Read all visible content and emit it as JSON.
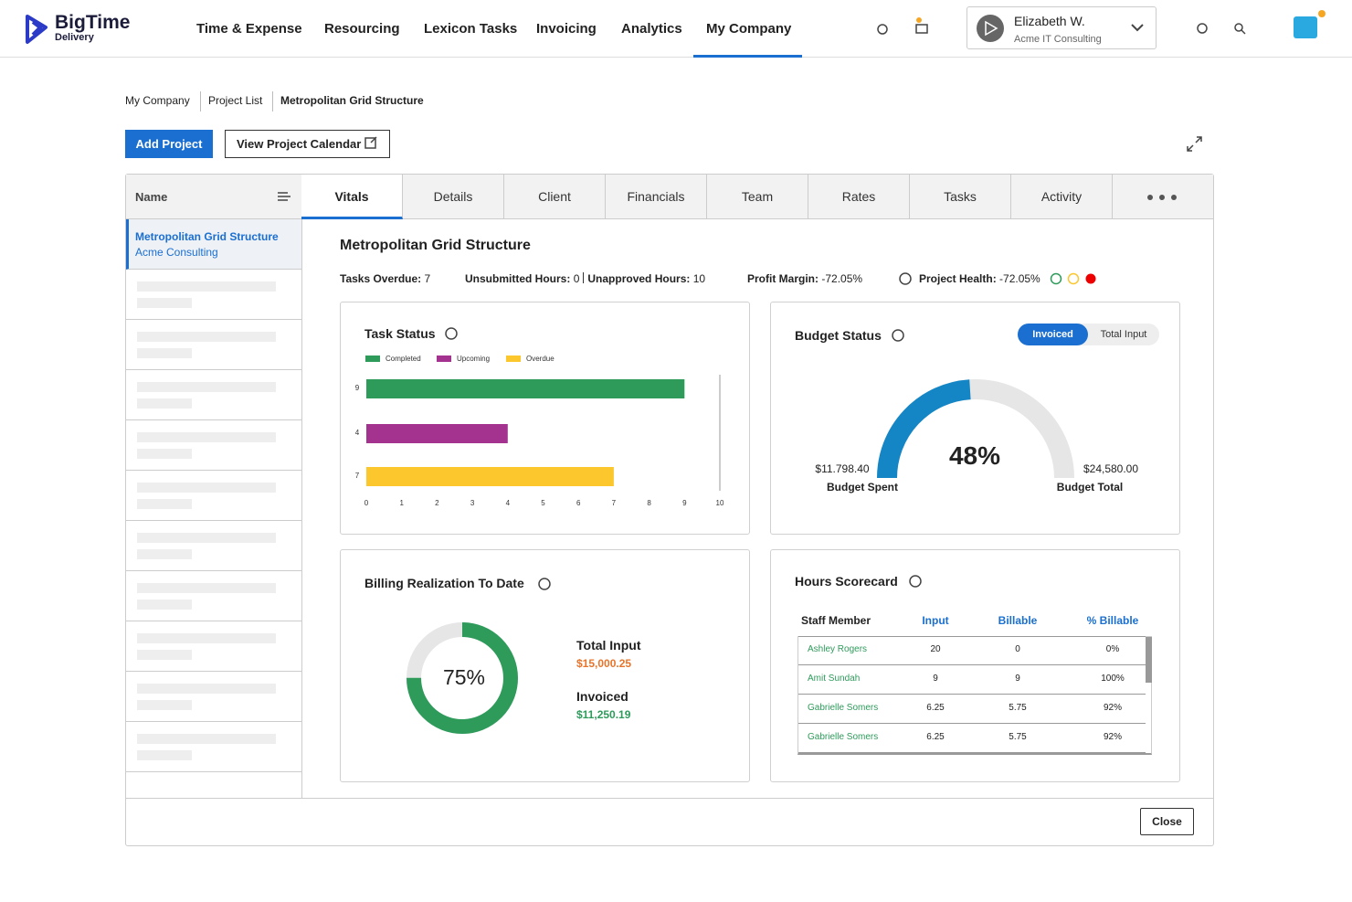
{
  "header": {
    "logo": {
      "name": "BigTime",
      "sub": "Delivery"
    },
    "nav": [
      "Time & Expense",
      "Resourcing",
      "Lexicon Tasks",
      "Invoicing",
      "Analytics",
      "My Company"
    ],
    "user": {
      "name": "Elizabeth W.",
      "company": "Acme IT Consulting"
    }
  },
  "breadcrumb": [
    "My Company",
    "Project List",
    "Metropolitan Grid Structure"
  ],
  "buttons": {
    "add": "Add Project",
    "calendar": "View Project Calendar",
    "close": "Close"
  },
  "sidebar": {
    "header": "Name",
    "selected": {
      "name": "Metropolitan Grid Structure",
      "client": "Acme Consulting"
    }
  },
  "tabs": [
    "Vitals",
    "Details",
    "Client",
    "Financials",
    "Team",
    "Rates",
    "Tasks",
    "Activity"
  ],
  "project": {
    "title": "Metropolitan Grid Structure",
    "tasks_overdue": {
      "label": "Tasks Overdue:",
      "value": 7
    },
    "unsubmitted": {
      "label": "Unsubmitted Hours:",
      "value": 0
    },
    "unapproved": {
      "label": "Unapproved Hours:",
      "value": 10
    },
    "profit_margin": {
      "label": "Profit Margin:",
      "value": "-72.05%"
    },
    "health": {
      "label": "Project Health:",
      "value": "-72.05%"
    }
  },
  "task_status": {
    "type": "bar",
    "title": "Task Status",
    "categories": [
      9,
      4,
      7
    ],
    "values": [
      9,
      4,
      7
    ],
    "colors": [
      "#2e9b5b",
      "#a3338f",
      "#fcc62d"
    ],
    "legend": [
      "Completed",
      "Upcoming",
      "Overdue"
    ],
    "xlim": [
      0,
      10
    ],
    "xticks": [
      0,
      1,
      2,
      3,
      4,
      5,
      6,
      7,
      8,
      9,
      10
    ]
  },
  "budget": {
    "type": "gauge",
    "title": "Budget Status",
    "toggle": [
      "Invoiced",
      "Total Input"
    ],
    "value": 48,
    "value_label": "48%",
    "color": "#1586c5",
    "spent": "$11.798.40",
    "spent_label": "Budget Spent",
    "total": "$24,580.00",
    "total_label": "Budget Total"
  },
  "billing": {
    "type": "donut",
    "title": "Billing Realization To Date",
    "value": 75,
    "value_label": "75%",
    "color": "#2e9b5b",
    "total_input_label": "Total Input",
    "total_input": "$15,000.25",
    "invoiced_label": "Invoiced",
    "invoiced": "$11,250.19"
  },
  "hours": {
    "title": "Hours Scorecard",
    "columns": [
      "Staff Member",
      "Input",
      "Billable",
      "% Billable"
    ],
    "rows": [
      [
        "Ashley Rogers",
        20,
        0,
        "0%"
      ],
      [
        "Amit Sundah",
        9,
        9,
        "100%"
      ],
      [
        "Gabrielle Somers",
        6.25,
        5.75,
        "92%"
      ],
      [
        "Gabrielle Somers",
        6.25,
        5.75,
        "92%"
      ]
    ]
  }
}
